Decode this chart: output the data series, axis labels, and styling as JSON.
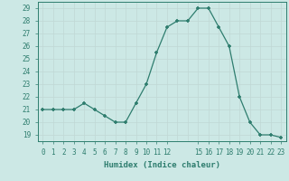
{
  "x": [
    0,
    1,
    2,
    3,
    4,
    5,
    6,
    7,
    8,
    9,
    10,
    11,
    12,
    13,
    14,
    15,
    16,
    17,
    18,
    19,
    20,
    21,
    22,
    23
  ],
  "y": [
    21,
    21,
    21,
    21,
    21.5,
    21,
    20.5,
    20,
    20,
    21.5,
    23,
    25.5,
    27.5,
    28,
    28,
    29,
    29,
    27.5,
    26,
    22,
    20,
    19,
    19,
    18.8
  ],
  "line_color": "#2e7d6e",
  "marker_color": "#2e7d6e",
  "bg_color": "#cce8e5",
  "grid_color": "#c0d8d5",
  "xlabel": "Humidex (Indice chaleur)",
  "xlim": [
    -0.5,
    23.5
  ],
  "ylim": [
    18.5,
    29.5
  ],
  "yticks": [
    19,
    20,
    21,
    22,
    23,
    24,
    25,
    26,
    27,
    28,
    29
  ],
  "xtick_positions": [
    0,
    1,
    2,
    3,
    4,
    5,
    6,
    7,
    8,
    9,
    10,
    11,
    12,
    15,
    16,
    17,
    18,
    19,
    20,
    21,
    22,
    23
  ],
  "xtick_labels": [
    "0",
    "1",
    "2",
    "3",
    "4",
    "5",
    "6",
    "7",
    "8",
    "9",
    "10",
    "11",
    "12",
    "15",
    "16",
    "17",
    "18",
    "19",
    "20",
    "21",
    "22",
    "23"
  ],
  "label_fontsize": 6.5,
  "tick_fontsize": 5.5
}
